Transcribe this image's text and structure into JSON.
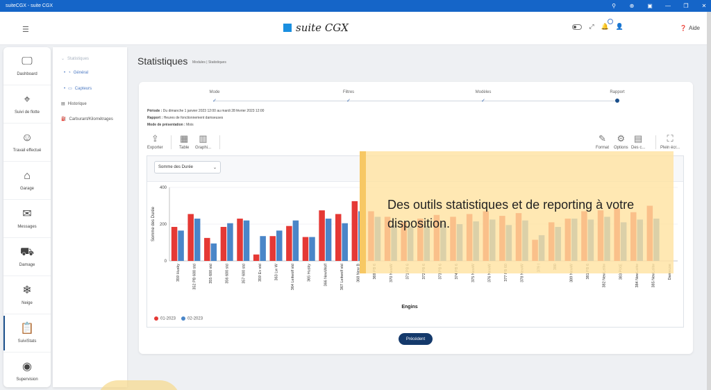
{
  "window": {
    "title": "suiteCGX - suite CGX",
    "controls": [
      "⚲",
      "⊕",
      "▣",
      "—",
      "❐",
      "✕"
    ]
  },
  "header": {
    "menu_icon": "hamburger-icon",
    "logo_text": "suite CGX",
    "help_label": "Aide",
    "colors": {
      "brand": "#1a8fe0",
      "titlebar": "#1565c8",
      "primary_dark": "#14396b"
    }
  },
  "sidebar": {
    "items": [
      {
        "label": "Dashboard",
        "icon": "monitor-icon",
        "glyph": "🖵"
      },
      {
        "label": "Suivi de flotte",
        "icon": "map-pin-icon",
        "glyph": "⌖"
      },
      {
        "label": "Travail effectué",
        "icon": "worker-icon",
        "glyph": "☺"
      },
      {
        "label": "Garage",
        "icon": "garage-icon",
        "glyph": "⌂"
      },
      {
        "label": "Messages",
        "icon": "envelope-icon",
        "glyph": "✉"
      },
      {
        "label": "Damage",
        "icon": "snowplow-icon",
        "glyph": "⛟"
      },
      {
        "label": "Neige",
        "icon": "snowflake-icon",
        "glyph": "❄"
      },
      {
        "label": "SuiviStats",
        "icon": "clipboard-icon",
        "glyph": "📋"
      },
      {
        "label": "Supervision",
        "icon": "eye-icon",
        "glyph": "◉"
      }
    ]
  },
  "submenu": {
    "section": "Statistiques",
    "items": [
      {
        "label": "Général"
      },
      {
        "label": "Capteurs"
      },
      {
        "label": "Historique"
      },
      {
        "label": "Carburant/Kilométrages"
      }
    ]
  },
  "page": {
    "title": "Statistiques",
    "breadcrumb": "Modules  |  Statistiques"
  },
  "stepper": {
    "steps": [
      {
        "label": "Mode",
        "state": "done"
      },
      {
        "label": "Filtres",
        "state": "done"
      },
      {
        "label": "Modèles",
        "state": "done"
      },
      {
        "label": "Rapport",
        "state": "current"
      }
    ]
  },
  "info": {
    "periode_label": "Période :",
    "periode_value": "Du dimanche 1 janvier 2023 12:00 au mardi 28 février 2023 12:00",
    "rapport_label": "Rapport :",
    "rapport_value": "Heures de fonctionnement damseuses",
    "mode_label": "Mode de présentation :",
    "mode_value": "Mois"
  },
  "toolbar": {
    "exporter": "Exporter",
    "table": "Table",
    "graph": "Graphi...",
    "format": "Format",
    "options": "Options",
    "des": "Des c...",
    "fullscreen": "Plein écr..."
  },
  "chart_controls": {
    "measure_select": "Somme des Durée"
  },
  "chart_data": {
    "type": "bar",
    "ylabel": "Somme des Durée",
    "xlabel": "Engins",
    "ylim": [
      0,
      400
    ],
    "yticks": [
      0,
      200,
      400
    ],
    "categories": [
      "359 Husky",
      "352 PB 600 std",
      "355 600 std",
      "356 600 std",
      "357 600 std",
      "359 Ev std",
      "363 Lw W",
      "364 Leitwolf std",
      "365 Husky",
      "366 NewWolf",
      "367 Leitwolf std",
      "368 New B",
      "369 PB 6",
      "370 NewW",
      "371 PB 6",
      "372 PB 6",
      "373 PB 6",
      "374 PB 6",
      "375 NewW",
      "376 NewW",
      "377 PB 60",
      "378 NewW",
      "379 I",
      "380",
      "389 NewW",
      "381 PB 6",
      "382 NewLeitw",
      "383 PIXE",
      "384 NewLeitw",
      "385 NewLeitw",
      "Dameuse"
    ],
    "series": [
      {
        "name": "01-2023",
        "color": "#e53935",
        "values": [
          185,
          255,
          125,
          185,
          230,
          35,
          135,
          190,
          130,
          275,
          255,
          325,
          270,
          240,
          210,
          230,
          250,
          240,
          255,
          270,
          245,
          260,
          115,
          210,
          230,
          270,
          275,
          285,
          265,
          300,
          0
        ]
      },
      {
        "name": "02-2023",
        "color": "#4a86c8",
        "values": [
          165,
          230,
          95,
          205,
          220,
          135,
          165,
          220,
          130,
          230,
          205,
          270,
          240,
          195,
          185,
          190,
          205,
          200,
          215,
          225,
          195,
          220,
          140,
          185,
          230,
          225,
          240,
          210,
          225,
          230,
          0
        ]
      }
    ],
    "grid": true,
    "legend": "bottom-left"
  },
  "buttons": {
    "previous": "Précédent"
  },
  "overlay": {
    "caption": "Des outils statistiques et de reporting à votre disposition."
  }
}
